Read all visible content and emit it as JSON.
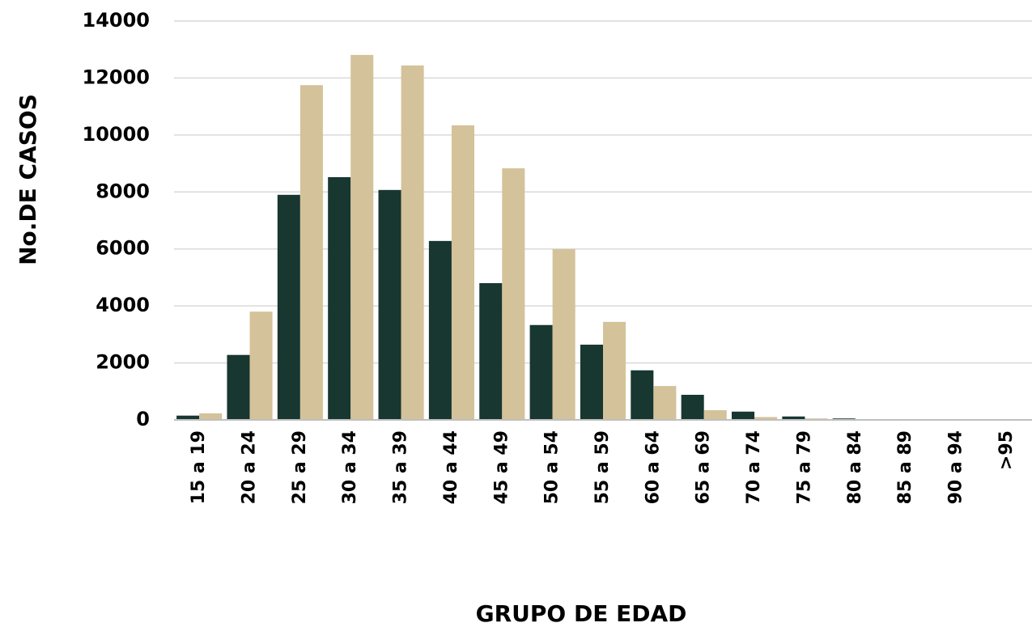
{
  "chart_data": {
    "type": "bar",
    "x_label": "GRUPO DE EDAD",
    "y_label": "No.DE CASOS",
    "categories": [
      "15 a 19",
      "20 a 24",
      "25 a 29",
      "30 a 34",
      "35 a 39",
      "40 a 44",
      "45 a 49",
      "50 a 54",
      "55 a 59",
      "60 a 64",
      "65 a 69",
      "70 a 74",
      "75 a 79",
      "80 a 84",
      "85 a 89",
      "90 a 94",
      ">95"
    ],
    "series": [
      {
        "color": "#173730",
        "values": [
          150,
          2280,
          7900,
          8520,
          8070,
          6280,
          4800,
          3330,
          2640,
          1740,
          880,
          290,
          120,
          50,
          20,
          15,
          10
        ]
      },
      {
        "color": "#d4c29a",
        "values": [
          230,
          3800,
          11750,
          12810,
          12440,
          10340,
          8830,
          5990,
          3440,
          1190,
          340,
          100,
          50,
          20,
          10,
          5,
          3
        ]
      }
    ],
    "ylim": [
      0,
      14000
    ],
    "yticks": [
      0,
      2000,
      4000,
      6000,
      8000,
      10000,
      12000,
      14000
    ],
    "grid": true
  }
}
